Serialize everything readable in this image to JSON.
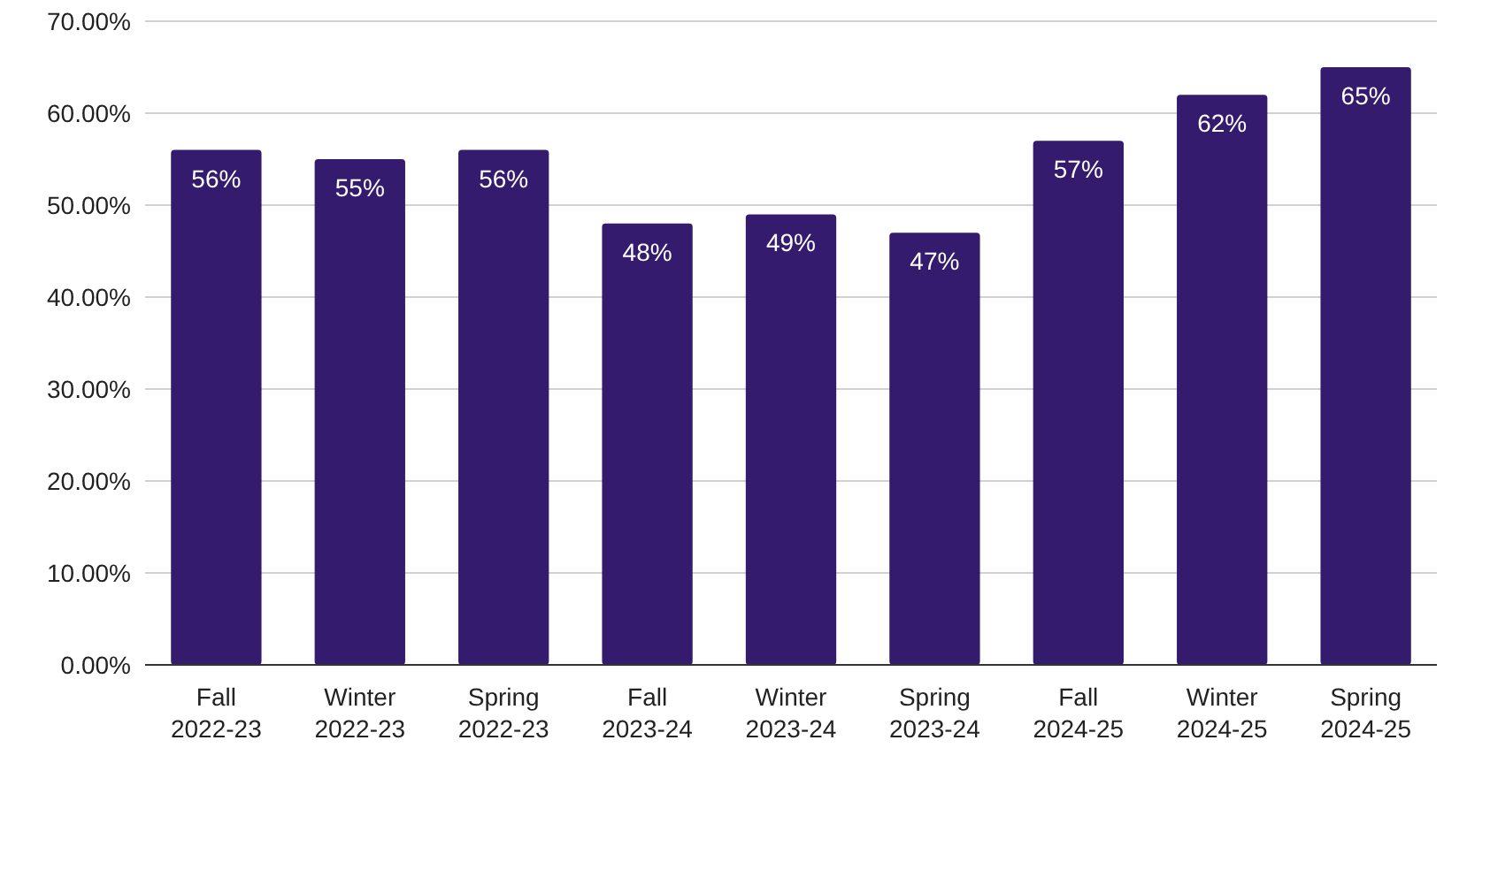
{
  "chart_data": {
    "type": "bar",
    "categories": [
      "Fall 2022-23",
      "Winter 2022-23",
      "Spring 2022-23",
      "Fall 2023-24",
      "Winter 2023-24",
      "Spring 2023-24",
      "Fall 2024-25",
      "Winter 2024-25",
      "Spring 2024-25"
    ],
    "values": [
      56,
      55,
      56,
      48,
      49,
      47,
      57,
      62,
      65
    ],
    "value_labels": [
      "56%",
      "55%",
      "56%",
      "48%",
      "49%",
      "47%",
      "57%",
      "62%",
      "65%"
    ],
    "color": "#341b6e",
    "ylim": [
      0,
      70
    ],
    "yticks": [
      {
        "value": 0,
        "label": "0.00%"
      },
      {
        "value": 10,
        "label": "10.00%"
      },
      {
        "value": 20,
        "label": "20.00%"
      },
      {
        "value": 30,
        "label": "30.00%"
      },
      {
        "value": 40,
        "label": "40.00%"
      },
      {
        "value": 50,
        "label": "50.00%"
      },
      {
        "value": 60,
        "label": "60.00%"
      },
      {
        "value": 70,
        "label": "70.00%"
      }
    ],
    "grid": "y"
  }
}
